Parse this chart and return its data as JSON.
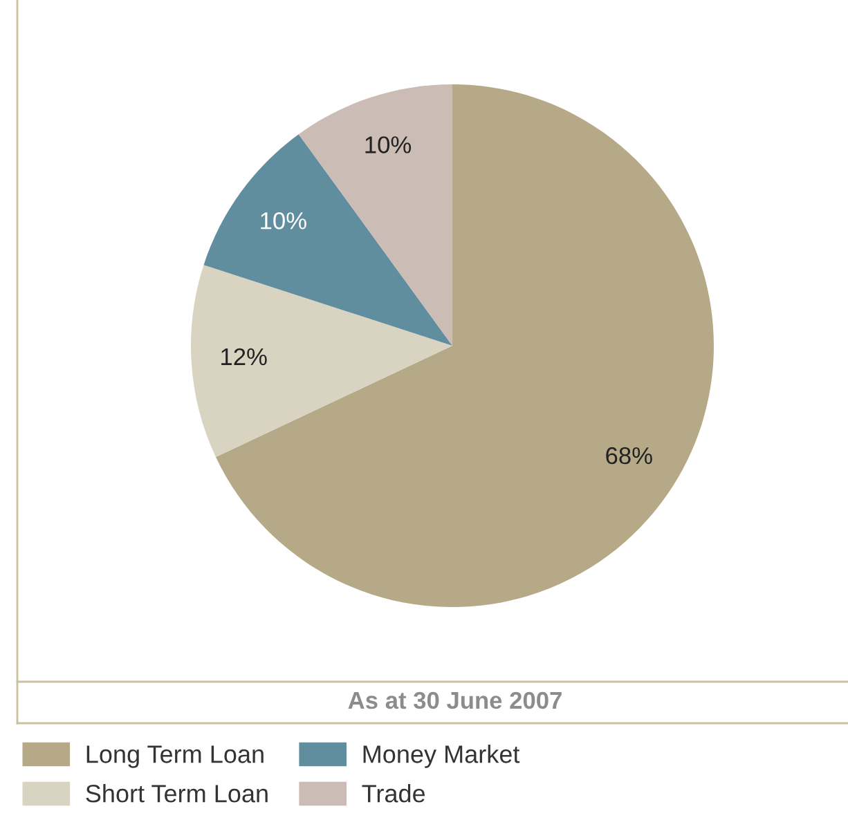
{
  "chart_data": {
    "type": "pie",
    "title": "As at 30 June 2007",
    "categories": [
      "Long Term Loan",
      "Short Term Loan",
      "Money Market",
      "Trade"
    ],
    "values": [
      68,
      12,
      10,
      10
    ],
    "colors": [
      "#b5a987",
      "#d9d4c2",
      "#618e9f",
      "#cbbcb5"
    ],
    "value_labels": [
      "68%",
      "12%",
      "10%",
      "10%"
    ],
    "legend": "bottom"
  }
}
